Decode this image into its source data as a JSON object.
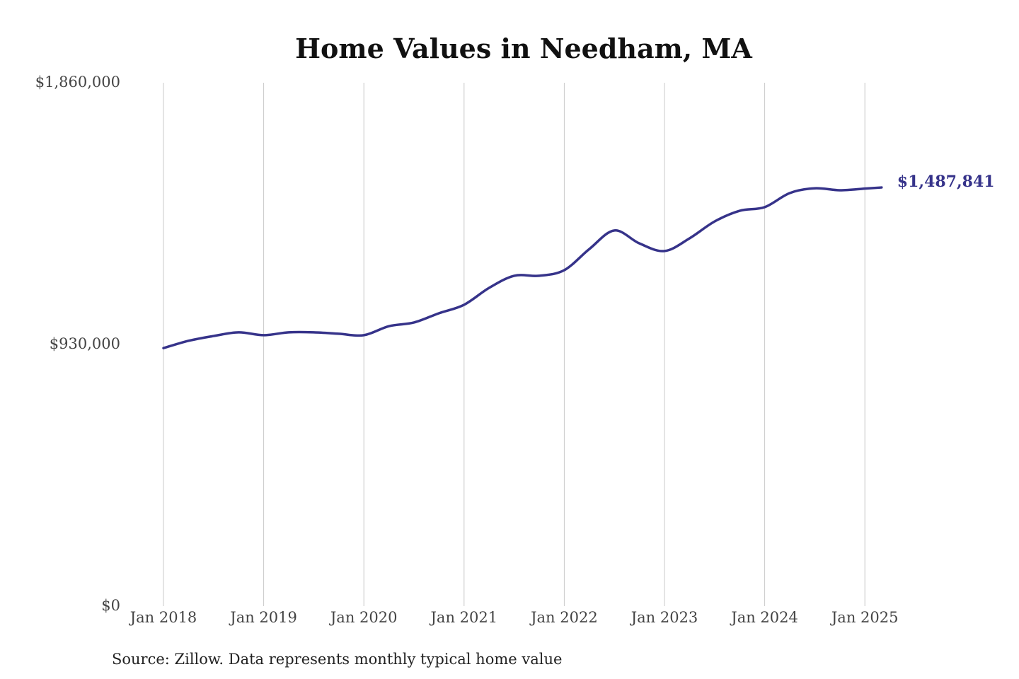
{
  "chart_data": {
    "type": "line",
    "title": "Home Values in Needham, MA",
    "source": "Source: Zillow. Data represents monthly typical home value",
    "xlabel": "",
    "ylabel": "",
    "ylim": [
      0,
      1860000
    ],
    "yticks": [
      0,
      930000,
      1860000
    ],
    "ytick_labels": [
      "$0",
      "$930,000",
      "$1,860,000"
    ],
    "xticks": [
      "2018-01",
      "2019-01",
      "2020-01",
      "2021-01",
      "2022-01",
      "2023-01",
      "2024-01",
      "2025-01"
    ],
    "xtick_labels": [
      "Jan 2018",
      "Jan 2019",
      "Jan 2020",
      "Jan 2021",
      "Jan 2022",
      "Jan 2023",
      "Jan 2024",
      "Jan 2025"
    ],
    "grid": "vertical",
    "line_color": "#36338a",
    "end_label": "$1,487,841",
    "series": [
      {
        "x": [
          "2018-01",
          "2018-04",
          "2018-07",
          "2018-10",
          "2019-01",
          "2019-04",
          "2019-07",
          "2019-10",
          "2020-01",
          "2020-04",
          "2020-07",
          "2020-10",
          "2021-01",
          "2021-04",
          "2021-07",
          "2021-10",
          "2022-01",
          "2022-04",
          "2022-07",
          "2022-10",
          "2023-01",
          "2023-04",
          "2023-07",
          "2023-10",
          "2024-01",
          "2024-04",
          "2024-07",
          "2024-10",
          "2025-01",
          "2025-03"
        ],
        "values": [
          917000,
          943000,
          960000,
          973000,
          963000,
          973000,
          973000,
          968000,
          963000,
          995000,
          1008000,
          1041000,
          1071000,
          1131000,
          1174000,
          1174000,
          1194000,
          1269000,
          1335000,
          1289000,
          1262000,
          1307000,
          1367000,
          1405000,
          1418000,
          1468000,
          1485000,
          1478000,
          1484000,
          1487841
        ]
      }
    ]
  }
}
